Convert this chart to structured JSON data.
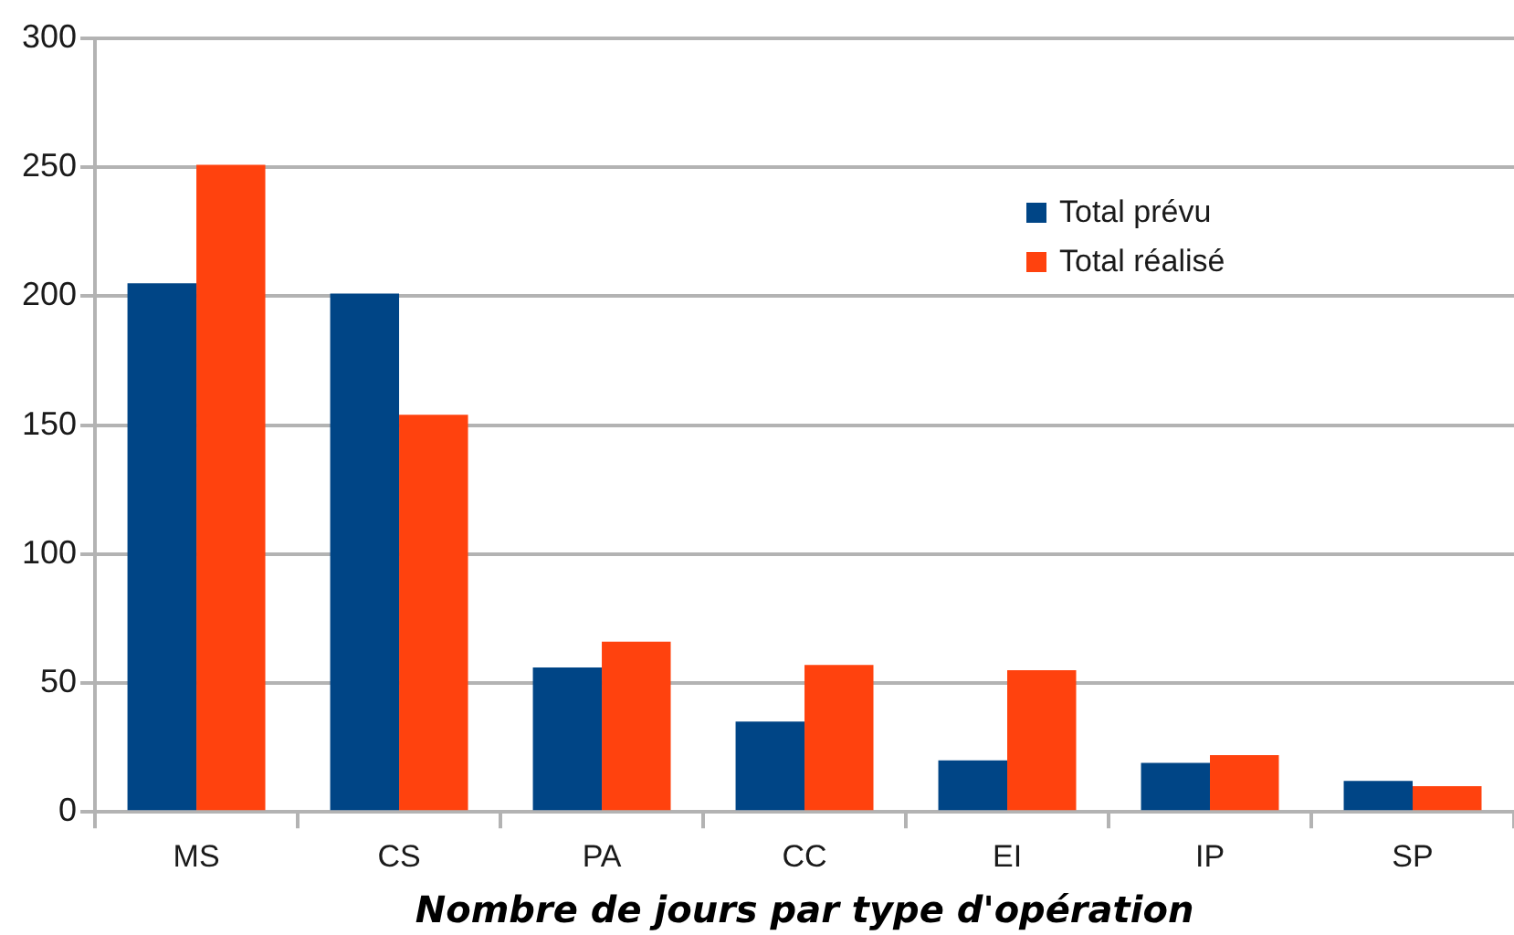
{
  "chart_data": {
    "type": "bar",
    "xlabel": "Nombre de jours par type d'opération",
    "categories": [
      "MS",
      "CS",
      "PA",
      "CC",
      "EI",
      "IP",
      "SP"
    ],
    "series": [
      {
        "name": "Total prévu",
        "color": "#004586",
        "values": [
          205,
          201,
          56,
          35,
          20,
          19,
          12
        ]
      },
      {
        "name": "Total réalisé",
        "color": "#ff420e",
        "values": [
          251,
          154,
          66,
          57,
          55,
          22,
          10
        ]
      }
    ],
    "ylim": [
      0,
      300
    ],
    "yticks": [
      0,
      50,
      100,
      150,
      200,
      250,
      300
    ],
    "grid": "y",
    "legend": "top right"
  }
}
